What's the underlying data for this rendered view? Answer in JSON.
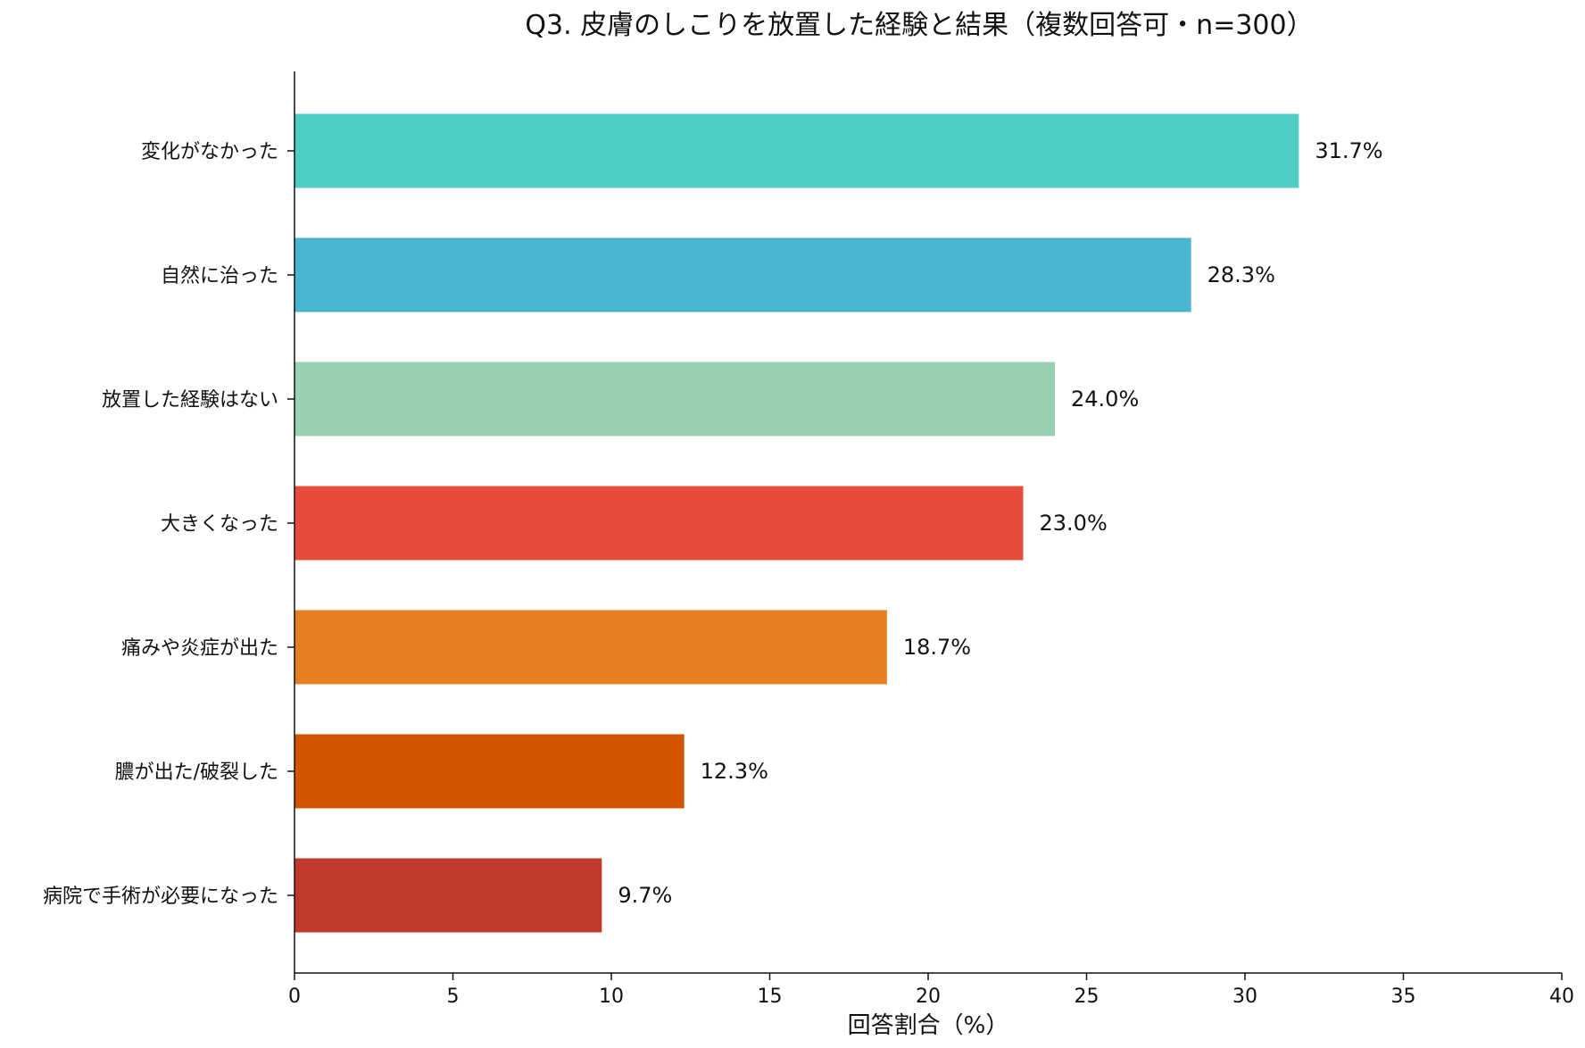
{
  "chart_data": {
    "type": "bar",
    "orientation": "horizontal",
    "title": "Q3. 皮膚のしこりを放置した経験と結果（複数回答可・n=300）",
    "xlabel": "回答割合（%）",
    "ylabel": "",
    "xlim": [
      0,
      40
    ],
    "xticks": [
      0,
      5,
      10,
      15,
      20,
      25,
      30,
      35,
      40
    ],
    "grid": false,
    "categories": [
      "変化がなかった",
      "自然に治った",
      "放置した経験はない",
      "大きくなった",
      "痛みや炎症が出た",
      "膿が出た/破裂した",
      "病院で手術が必要になった"
    ],
    "values": [
      31.7,
      28.3,
      24.0,
      23.0,
      18.7,
      12.3,
      9.7
    ],
    "value_labels": [
      "31.7%",
      "28.3%",
      "24.0%",
      "23.0%",
      "18.7%",
      "12.3%",
      "9.7%"
    ],
    "colors": [
      "#4ecdc4",
      "#48b5d1",
      "#98d0b2",
      "#e74c3c",
      "#e67e22",
      "#d35400",
      "#c0392b"
    ]
  }
}
